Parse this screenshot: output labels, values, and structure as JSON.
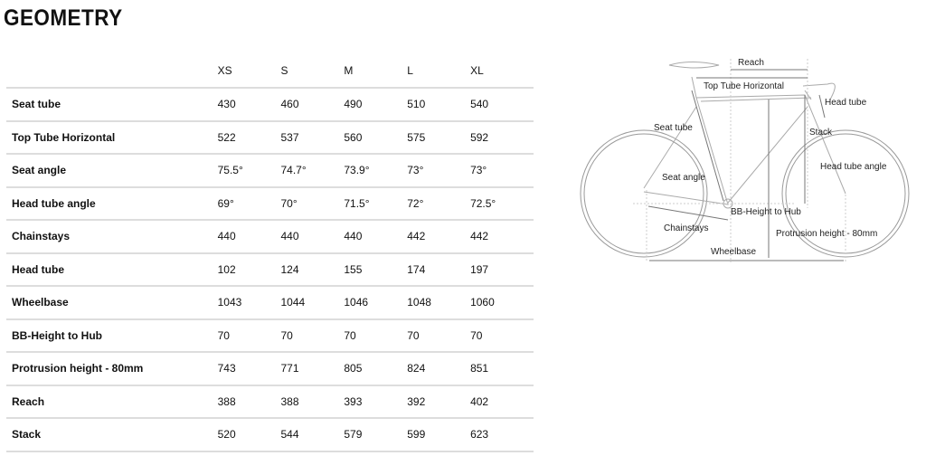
{
  "title": "GEOMETRY",
  "sizes": [
    "XS",
    "S",
    "M",
    "L",
    "XL"
  ],
  "rows": [
    {
      "label": "Seat tube",
      "values": [
        "430",
        "460",
        "490",
        "510",
        "540"
      ]
    },
    {
      "label": "Top Tube Horizontal",
      "values": [
        "522",
        "537",
        "560",
        "575",
        "592"
      ]
    },
    {
      "label": "Seat angle",
      "values": [
        "75.5°",
        "74.7°",
        "73.9°",
        "73°",
        "73°"
      ]
    },
    {
      "label": "Head tube angle",
      "values": [
        "69°",
        "70°",
        "71.5°",
        "72°",
        "72.5°"
      ]
    },
    {
      "label": "Chainstays",
      "values": [
        "440",
        "440",
        "440",
        "442",
        "442"
      ]
    },
    {
      "label": "Head tube",
      "values": [
        "102",
        "124",
        "155",
        "174",
        "197"
      ]
    },
    {
      "label": "Wheelbase",
      "values": [
        "1043",
        "1044",
        "1046",
        "1048",
        "1060"
      ]
    },
    {
      "label": "BB-Height to Hub",
      "values": [
        "70",
        "70",
        "70",
        "70",
        "70"
      ]
    },
    {
      "label": "Protrusion height - 80mm",
      "values": [
        "743",
        "771",
        "805",
        "824",
        "851"
      ]
    },
    {
      "label": "Reach",
      "values": [
        "388",
        "388",
        "393",
        "392",
        "402"
      ]
    },
    {
      "label": "Stack",
      "values": [
        "520",
        "544",
        "579",
        "599",
        "623"
      ]
    }
  ],
  "diagram": {
    "reach": "Reach",
    "top_tube": "Top Tube Horizontal",
    "head_tube": "Head tube",
    "seat_tube": "Seat tube",
    "stack": "Stack",
    "head_tube_angle": "Head tube angle",
    "seat_angle": "Seat angle",
    "bb_height": "BB-Height to Hub",
    "chainstays": "Chainstays",
    "protrusion": "Protrusion height - 80mm",
    "wheelbase": "Wheelbase"
  }
}
